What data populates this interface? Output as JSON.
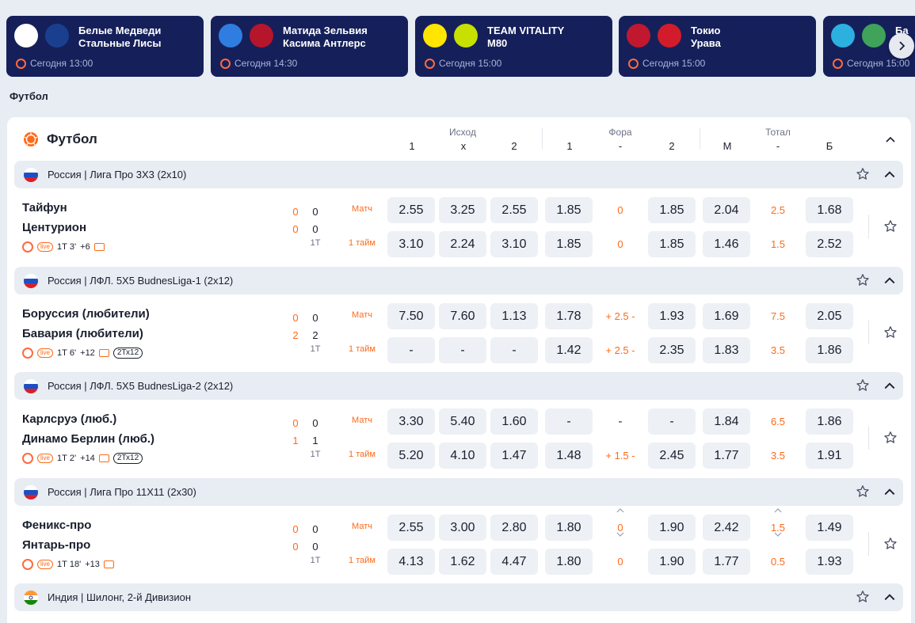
{
  "cards": [
    {
      "teams": [
        "Белые Медведи",
        "Стальные Лисы"
      ],
      "time": "Сегодня 13:00",
      "logo1": "#ffffff",
      "logo2": "#1b3f8f"
    },
    {
      "teams": [
        "Матида Зельвия",
        "Касима Антлерс"
      ],
      "time": "Сегодня 14:30",
      "logo1": "#2f7de0",
      "logo2": "#b5162b"
    },
    {
      "teams": [
        "TEAM VITALITY",
        "M80"
      ],
      "time": "Сегодня 15:00",
      "logo1": "#ffe500",
      "logo2": "#c8e000"
    },
    {
      "teams": [
        "Токио",
        "Урава"
      ],
      "time": "Сегодня 15:00",
      "logo1": "#c0182f",
      "logo2": "#d21c2c"
    },
    {
      "teams": [
        "Ба",
        ""
      ],
      "time": "Сегодня 15:00",
      "logo1": "#2bb0e0",
      "logo2": "#3fa35a"
    }
  ],
  "section_title": "Футбол",
  "panel": {
    "title": "Футбол",
    "groups": {
      "outcome": "Исход",
      "handicap": "Фора",
      "total": "Тотал"
    },
    "columns": {
      "o1": "1",
      "ox": "x",
      "o2": "2",
      "h1": "1",
      "hmid": "-",
      "h2": "2",
      "tm": "М",
      "tmid": "-",
      "tb": "Б"
    }
  },
  "leagues": [
    {
      "name": "Россия | Лига Про 3Х3 (2х10)",
      "flag": "ru",
      "match": {
        "team1": "Тайфун",
        "team2": "Центурион",
        "score1": [
          "0",
          "0"
        ],
        "score2": [
          "0",
          "0"
        ],
        "period": "1Т",
        "meta": {
          "time": "1Т 3'",
          "more": "+6",
          "format": ""
        },
        "rows": [
          {
            "label": "Матч",
            "odds": [
              "2.55",
              "3.25",
              "2.55",
              "1.85",
              "0",
              "1.85",
              "2.04",
              "2.5",
              "1.68"
            ]
          },
          {
            "label": "1 тайм",
            "odds": [
              "3.10",
              "2.24",
              "3.10",
              "1.85",
              "0",
              "1.85",
              "1.46",
              "1.5",
              "2.52"
            ]
          }
        ]
      }
    },
    {
      "name": "Россия | ЛФЛ. 5Х5 BudnesLiga-1 (2х12)",
      "flag": "ru",
      "match": {
        "team1": "Боруссия (любители)",
        "team2": "Бавария (любители)",
        "score1": [
          "0",
          "0"
        ],
        "score2": [
          "2",
          "2"
        ],
        "period": "1Т",
        "meta": {
          "time": "1Т 6'",
          "more": "+12",
          "format": "2Тх12"
        },
        "rows": [
          {
            "label": "Матч",
            "odds": [
              "7.50",
              "7.60",
              "1.13",
              "1.78",
              "+ 2.5 -",
              "1.93",
              "1.69",
              "7.5",
              "2.05"
            ]
          },
          {
            "label": "1 тайм",
            "odds": [
              "-",
              "-",
              "-",
              "1.42",
              "+ 2.5 -",
              "2.35",
              "1.83",
              "3.5",
              "1.86"
            ]
          }
        ]
      }
    },
    {
      "name": "Россия | ЛФЛ. 5Х5 BudnesLiga-2 (2х12)",
      "flag": "ru",
      "match": {
        "team1": "Карлсруэ (люб.)",
        "team2": "Динамо Берлин (люб.)",
        "score1": [
          "0",
          "0"
        ],
        "score2": [
          "1",
          "1"
        ],
        "period": "1Т",
        "meta": {
          "time": "1Т 2'",
          "more": "+14",
          "format": "2Тх12"
        },
        "rows": [
          {
            "label": "Матч",
            "odds": [
              "3.30",
              "5.40",
              "1.60",
              "-",
              "-",
              "-",
              "1.84",
              "6.5",
              "1.86"
            ]
          },
          {
            "label": "1 тайм",
            "odds": [
              "5.20",
              "4.10",
              "1.47",
              "1.48",
              "+ 1.5 -",
              "2.45",
              "1.77",
              "3.5",
              "1.91"
            ]
          }
        ]
      }
    },
    {
      "name": "Россия | Лига Про 11Х11 (2х30)",
      "flag": "ru",
      "match": {
        "team1": "Феникс-про",
        "team2": "Янтарь-про",
        "score1": [
          "0",
          "0"
        ],
        "score2": [
          "0",
          "0"
        ],
        "period": "1Т",
        "meta": {
          "time": "1Т 18'",
          "more": "+13",
          "format": ""
        },
        "rows": [
          {
            "label": "Матч",
            "odds": [
              "2.55",
              "3.00",
              "2.80",
              "1.80",
              "0",
              "1.90",
              "2.42",
              "1.5",
              "1.49"
            ]
          },
          {
            "label": "1 тайм",
            "odds": [
              "4.13",
              "1.62",
              "4.47",
              "1.80",
              "0",
              "1.90",
              "1.77",
              "0.5",
              "1.93"
            ]
          }
        ]
      }
    },
    {
      "name": "Индия | Шилонг, 2-й Дивизион",
      "flag": "in"
    }
  ],
  "colors": {
    "accent": "#ff6a1a",
    "card_bg": "#15205a",
    "odd_bg": "#edf0f5",
    "page_bg": "#e8ecf3"
  }
}
